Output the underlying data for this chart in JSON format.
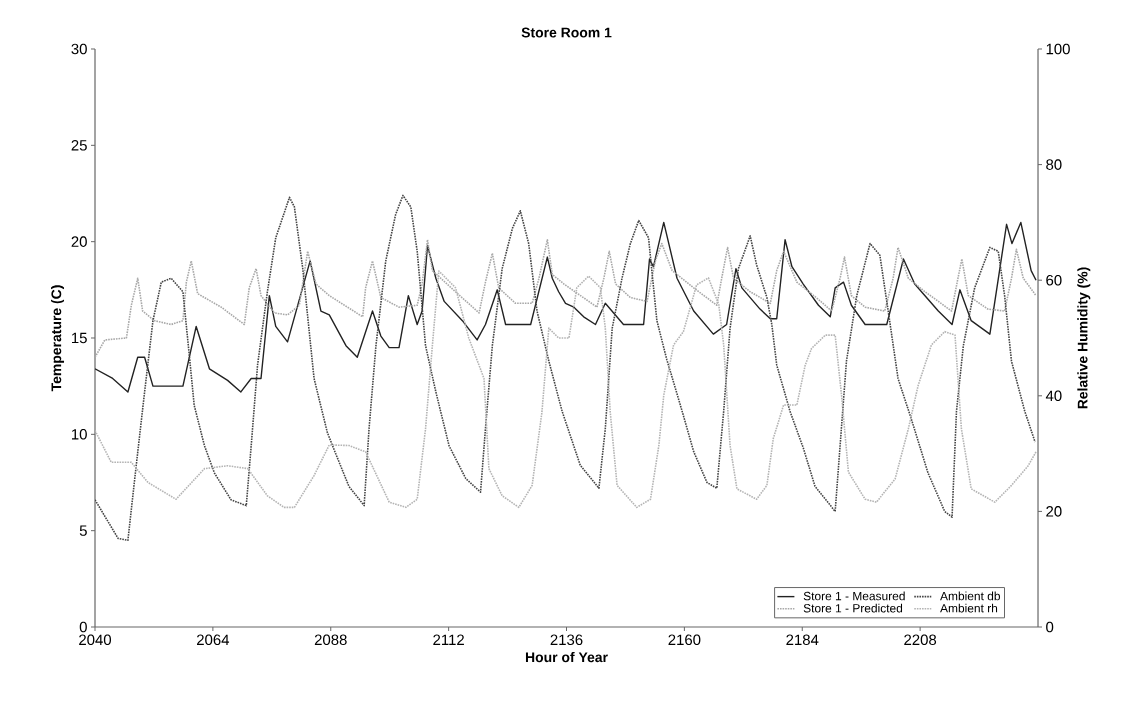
{
  "chart_data": {
    "type": "line",
    "title": "Store Room 1",
    "xlabel": "Hour of Year",
    "ylabel": "Temperature (C)",
    "y2label": "Relative Humidity (%)",
    "xlim": [
      2040,
      2232
    ],
    "xticks": [
      2040,
      2064,
      2088,
      2112,
      2136,
      2160,
      2184,
      2208
    ],
    "ylim": [
      0,
      30
    ],
    "yticks": [
      0,
      5,
      10,
      15,
      20,
      25,
      30
    ],
    "y2lim": [
      0,
      100
    ],
    "y2ticks": [
      0,
      20,
      40,
      60,
      80,
      100
    ],
    "legend": "bottom right",
    "grid": false,
    "series": [
      {
        "name": "Store 1 - Measured",
        "color": "#222222",
        "line_style": "solid",
        "x": [
          2040,
          2043.6,
          2046.7,
          2048.7,
          2050.1,
          2051.8,
          2057.9,
          2060.6,
          2063.3,
          2067,
          2069.7,
          2071.8,
          2073.8,
          2075.5,
          2076.8,
          2079.2,
          2083.8,
          2086,
          2087.7,
          2091.1,
          2093.4,
          2096.5,
          2098.2,
          2099.9,
          2101.9,
          2103.8,
          2105.6,
          2106.6,
          2107.7,
          2109.4,
          2111.1,
          2114.8,
          2117.8,
          2119.5,
          2121.9,
          2123.6,
          2128.7,
          2132.1,
          2133.1,
          2134.4,
          2135.8,
          2137.5,
          2139.5,
          2141.9,
          2143.9,
          2147.6,
          2151.7,
          2152.9,
          2153.7,
          2155.8,
          2158.5,
          2161.9,
          2165.9,
          2168.6,
          2170.5,
          2171.7,
          2175.4,
          2177.5,
          2178.8,
          2180.5,
          2181.9,
          2184.2,
          2187.3,
          2189.7,
          2190.7,
          2192.4,
          2194,
          2196.8,
          2201.2,
          2204.6,
          2206.9,
          2211.7,
          2214.5,
          2216.1,
          2218.4,
          2222.2,
          2225.6,
          2226.7,
          2228.5,
          2230.6,
          2231.6
        ],
        "values": [
          13.4,
          12.9,
          12.2,
          14.0,
          14.0,
          12.5,
          12.5,
          15.6,
          13.4,
          12.8,
          12.2,
          12.9,
          12.9,
          17.2,
          15.6,
          14.8,
          19.0,
          16.4,
          16.2,
          14.6,
          14.0,
          16.4,
          15.1,
          14.5,
          14.5,
          17.2,
          15.7,
          16.4,
          19.8,
          18.1,
          16.9,
          15.9,
          14.9,
          15.7,
          17.5,
          15.7,
          15.7,
          19.2,
          18.1,
          17.4,
          16.8,
          16.6,
          16.1,
          15.7,
          16.8,
          15.7,
          15.7,
          19.1,
          18.7,
          21.0,
          18.1,
          16.4,
          15.2,
          15.7,
          18.6,
          17.6,
          16.5,
          16.0,
          16.0,
          20.1,
          18.7,
          17.8,
          16.7,
          16.1,
          17.6,
          17.9,
          16.7,
          15.7,
          15.7,
          19.1,
          17.8,
          16.4,
          15.7,
          17.5,
          15.9,
          15.2,
          20.9,
          19.9,
          21.0,
          18.5,
          18.0
        ]
      },
      {
        "name": "Store 1 - Predicted",
        "color": "#a8a8a8",
        "line_style": "dotted",
        "x": [
          2040,
          2042,
          2046.4,
          2047.4,
          2048.7,
          2049.7,
          2052.1,
          2055.5,
          2057.9,
          2058.6,
          2059.6,
          2060.9,
          2065.7,
          2070.4,
          2071.4,
          2072.8,
          2073.8,
          2076.5,
          2079.2,
          2081.6,
          2083.3,
          2085,
          2087.7,
          2094.5,
          2095.1,
          2096.5,
          2098.2,
          2101.9,
          2105.6,
          2106.6,
          2107.7,
          2108.7,
          2113.4,
          2118.2,
          2119.5,
          2120.9,
          2122.2,
          2125.6,
          2129,
          2130.4,
          2132.1,
          2133.1,
          2135.5,
          2142.2,
          2143.6,
          2144.7,
          2146,
          2149,
          2152.4,
          2154.1,
          2155.4,
          2157.5,
          2161.9,
          2166.6,
          2167.6,
          2168.8,
          2170,
          2173.4,
          2177.5,
          2178.8,
          2180.2,
          2182.9,
          2187.3,
          2190,
          2191.7,
          2192.6,
          2194,
          2196.8,
          2200.8,
          2202.5,
          2203.5,
          2205.6,
          2209,
          2214.4,
          2215.7,
          2216.5,
          2217.8,
          2221.8,
          2225.2,
          2226.6,
          2227.6,
          2229,
          2231.6
        ],
        "values": [
          14.0,
          14.9,
          15.0,
          16.7,
          18.1,
          16.4,
          15.9,
          15.7,
          15.9,
          17.9,
          19.0,
          17.3,
          16.6,
          15.7,
          17.6,
          18.6,
          17.2,
          16.3,
          16.2,
          16.7,
          19.5,
          17.8,
          17.2,
          16.1,
          17.6,
          19.0,
          17.1,
          16.6,
          16.7,
          17.8,
          20.1,
          18.5,
          17.4,
          16.3,
          17.9,
          19.4,
          17.6,
          16.8,
          16.8,
          18.1,
          20.1,
          18.3,
          17.8,
          16.6,
          18.1,
          19.5,
          17.8,
          17.1,
          16.9,
          19.0,
          19.9,
          18.5,
          17.6,
          16.7,
          18.1,
          19.7,
          18.1,
          17.4,
          16.8,
          18.5,
          19.5,
          17.9,
          17.0,
          16.4,
          18.1,
          19.2,
          17.2,
          16.6,
          16.4,
          18.1,
          19.7,
          18.1,
          17.4,
          16.4,
          18.1,
          19.1,
          17.2,
          16.5,
          16.4,
          18.1,
          19.6,
          18.1,
          17.2
        ]
      },
      {
        "name": "Ambient db",
        "color": "#444444",
        "line_style": "dotted",
        "x": [
          2040,
          2044.7,
          2046.7,
          2048.4,
          2050.1,
          2051.8,
          2053.5,
          2055.5,
          2057.9,
          2059.2,
          2060.2,
          2062.3,
          2064.3,
          2067.7,
          2070.8,
          2071.8,
          2073.1,
          2075.1,
          2076.8,
          2079.6,
          2080.6,
          2082.3,
          2084.6,
          2087.3,
          2089,
          2091.7,
          2094.8,
          2095.8,
          2097.2,
          2099.2,
          2101.2,
          2102.7,
          2104.3,
          2105.6,
          2107.3,
          2109.4,
          2112.1,
          2115.5,
          2118.5,
          2119.5,
          2120.9,
          2122.9,
          2125,
          2126.6,
          2128.3,
          2130,
          2132.4,
          2135.1,
          2138.8,
          2142.6,
          2143.9,
          2145.3,
          2147.3,
          2149,
          2150.7,
          2152.7,
          2154.4,
          2156.4,
          2159.2,
          2161.9,
          2164.6,
          2166.6,
          2168,
          2169.3,
          2171,
          2173.4,
          2174.7,
          2176.8,
          2177.8,
          2178.8,
          2181.5,
          2184.2,
          2186.6,
          2190.7,
          2191.7,
          2193,
          2195.1,
          2197.8,
          2199.8,
          2201.5,
          2203.5,
          2206.2,
          2209.6,
          2213,
          2214.5,
          2215.4,
          2216.8,
          2219.1,
          2222.2,
          2223.9,
          2225.2,
          2226.6,
          2229.3,
          2231.4
        ],
        "values": [
          6.6,
          4.6,
          4.5,
          8.4,
          12.2,
          15.9,
          17.9,
          18.1,
          17.4,
          14.1,
          11.5,
          9.4,
          8.0,
          6.6,
          6.3,
          9.4,
          13.6,
          17.4,
          20.2,
          22.3,
          21.8,
          18.6,
          12.9,
          10.1,
          9.0,
          7.3,
          6.3,
          10.3,
          14.6,
          19.0,
          21.4,
          22.4,
          21.8,
          19.5,
          14.6,
          12.2,
          9.4,
          7.7,
          7.0,
          10.3,
          14.6,
          18.6,
          20.7,
          21.6,
          19.9,
          16.4,
          13.8,
          11.2,
          8.4,
          7.2,
          10.3,
          15.5,
          18.1,
          19.9,
          21.1,
          20.2,
          15.9,
          13.9,
          11.5,
          9.1,
          7.5,
          7.2,
          11.2,
          15.5,
          18.6,
          20.3,
          18.8,
          17.1,
          15.7,
          13.6,
          11.2,
          9.3,
          7.3,
          6.0,
          9.4,
          13.8,
          17.2,
          19.9,
          19.3,
          16.4,
          12.9,
          10.8,
          8.0,
          6.0,
          5.7,
          11.2,
          14.6,
          17.6,
          19.7,
          19.5,
          17.2,
          13.8,
          11.2,
          9.6
        ]
      },
      {
        "name": "Ambient rh",
        "color": "#b4b4b4",
        "line_style": "dotted",
        "axis": "y2",
        "x": [
          2040,
          2043.3,
          2047.4,
          2050.8,
          2056.5,
          2062.3,
          2067,
          2071.1,
          2075.1,
          2078.5,
          2080.6,
          2084.6,
          2087.7,
          2091.7,
          2095.1,
          2099.9,
          2103.3,
          2105.6,
          2107.3,
          2108.7,
          2110,
          2113.4,
          2116.1,
          2119.2,
          2120.2,
          2122.9,
          2126.3,
          2129,
          2131,
          2132.4,
          2134.4,
          2136.5,
          2138.1,
          2140.5,
          2142.9,
          2143.9,
          2144.9,
          2146.3,
          2150.3,
          2153.1,
          2154.8,
          2155.8,
          2157.8,
          2159.8,
          2162.5,
          2164.9,
          2167,
          2168,
          2169.3,
          2170.7,
          2174.7,
          2176.8,
          2178.1,
          2180.2,
          2182.9,
          2184.6,
          2185.9,
          2188.7,
          2190.7,
          2192,
          2193.4,
          2196.8,
          2199.1,
          2202.9,
          2205.6,
          2207.6,
          2210.3,
          2213,
          2215.1,
          2216.4,
          2218.4,
          2223.2,
          2226.6,
          2230,
          2231.6
        ],
        "values": [
          34.0,
          28.5,
          28.5,
          25.0,
          22.1,
          27.4,
          27.9,
          27.4,
          22.7,
          20.7,
          20.7,
          26.2,
          31.5,
          31.4,
          30.3,
          21.6,
          20.7,
          22.1,
          34.3,
          48.8,
          61.6,
          58.7,
          50.0,
          43.0,
          27.4,
          22.7,
          20.7,
          24.5,
          37.2,
          51.7,
          50.0,
          50.0,
          58.7,
          60.7,
          58.7,
          51.7,
          37.2,
          24.5,
          20.7,
          22.1,
          31.4,
          40.1,
          48.8,
          51.1,
          59.2,
          60.4,
          55.8,
          48.8,
          31.4,
          23.9,
          22.1,
          24.5,
          32.6,
          38.4,
          38.4,
          45.3,
          48.2,
          50.5,
          50.5,
          40.1,
          26.8,
          22.1,
          21.6,
          25.6,
          34.3,
          41.8,
          48.8,
          51.1,
          50.5,
          34.3,
          23.9,
          21.6,
          24.5,
          27.9,
          30.3
        ]
      }
    ]
  }
}
